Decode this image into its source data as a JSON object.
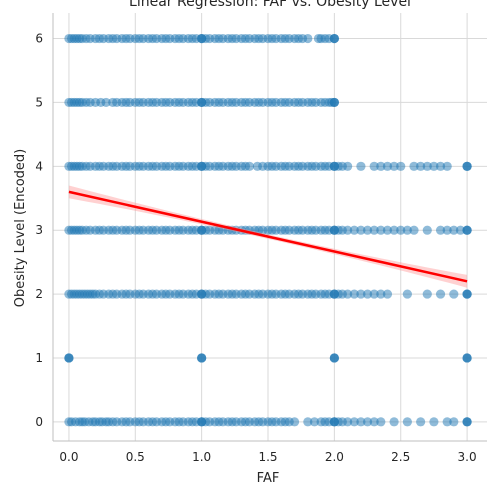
{
  "chart_data": {
    "type": "scatter",
    "title": "Linear Regression: FAF vs. Obesity Level",
    "xlabel": "FAF",
    "ylabel": "Obesity Level (Encoded)",
    "xlim": [
      -0.12,
      3.15
    ],
    "ylim": [
      -0.3,
      6.4
    ],
    "x_ticks": [
      "0.0",
      "0.5",
      "1.0",
      "1.5",
      "2.0",
      "2.5",
      "3.0"
    ],
    "y_ticks": [
      "0",
      "1",
      "2",
      "3",
      "4",
      "5",
      "6"
    ],
    "grid": true,
    "point_color": "#1f77b4",
    "point_alpha": 0.5,
    "series": [
      {
        "values_by_level": [
          {
            "y": 0,
            "x": [
              0.0,
              0.02,
              0.05,
              0.08,
              0.1,
              0.12,
              0.15,
              0.18,
              0.2,
              0.23,
              0.25,
              0.28,
              0.3,
              0.33,
              0.36,
              0.4,
              0.43,
              0.46,
              0.5,
              0.53,
              0.56,
              0.6,
              0.63,
              0.66,
              0.7,
              0.73,
              0.76,
              0.8,
              0.83,
              0.86,
              0.9,
              0.93,
              0.96,
              1.0,
              1.0,
              1.0,
              1.03,
              1.06,
              1.1,
              1.13,
              1.16,
              1.2,
              1.23,
              1.26,
              1.3,
              1.33,
              1.36,
              1.4,
              1.43,
              1.46,
              1.5,
              1.53,
              1.56,
              1.6,
              1.63,
              1.66,
              1.7,
              1.8,
              1.85,
              1.9,
              1.93,
              1.96,
              2.0,
              2.0,
              2.0,
              2.03,
              2.06,
              2.1,
              2.15,
              2.2,
              2.25,
              2.3,
              2.35,
              2.45,
              2.55,
              2.65,
              2.75,
              2.85,
              2.9,
              3.0,
              3.0,
              3.0
            ]
          },
          {
            "y": 1,
            "x": [
              0.0,
              0.0,
              0.0,
              1.0,
              1.0,
              1.0,
              2.0,
              2.0,
              2.0,
              3.0,
              3.0,
              3.0
            ]
          },
          {
            "y": 2,
            "x": [
              0.0,
              0.02,
              0.04,
              0.06,
              0.08,
              0.1,
              0.12,
              0.14,
              0.16,
              0.18,
              0.2,
              0.23,
              0.26,
              0.3,
              0.33,
              0.36,
              0.4,
              0.43,
              0.46,
              0.5,
              0.53,
              0.56,
              0.6,
              0.63,
              0.66,
              0.7,
              0.73,
              0.76,
              0.8,
              0.83,
              0.86,
              0.9,
              0.93,
              0.96,
              1.0,
              1.0,
              1.0,
              1.03,
              1.06,
              1.1,
              1.13,
              1.16,
              1.2,
              1.23,
              1.26,
              1.3,
              1.33,
              1.36,
              1.4,
              1.43,
              1.46,
              1.5,
              1.53,
              1.56,
              1.6,
              1.63,
              1.66,
              1.7,
              1.73,
              1.76,
              1.8,
              1.83,
              1.86,
              1.9,
              1.93,
              1.96,
              2.0,
              2.0,
              2.0,
              2.03,
              2.06,
              2.1,
              2.15,
              2.2,
              2.25,
              2.3,
              2.35,
              2.4,
              2.55,
              2.7,
              2.8,
              2.9,
              3.0,
              3.0,
              3.0
            ]
          },
          {
            "y": 3,
            "x": [
              0.0,
              0.02,
              0.04,
              0.06,
              0.08,
              0.1,
              0.13,
              0.16,
              0.2,
              0.23,
              0.26,
              0.3,
              0.33,
              0.36,
              0.4,
              0.43,
              0.46,
              0.5,
              0.53,
              0.56,
              0.6,
              0.63,
              0.66,
              0.7,
              0.73,
              0.76,
              0.8,
              0.83,
              0.86,
              0.9,
              0.93,
              0.96,
              1.0,
              1.0,
              1.0,
              1.03,
              1.06,
              1.1,
              1.13,
              1.16,
              1.2,
              1.23,
              1.26,
              1.3,
              1.33,
              1.36,
              1.4,
              1.43,
              1.46,
              1.5,
              1.53,
              1.56,
              1.6,
              1.63,
              1.66,
              1.7,
              1.73,
              1.76,
              1.8,
              1.83,
              1.86,
              1.9,
              1.93,
              1.96,
              2.0,
              2.0,
              2.0,
              2.03,
              2.06,
              2.1,
              2.15,
              2.2,
              2.25,
              2.3,
              2.35,
              2.4,
              2.45,
              2.5,
              2.55,
              2.6,
              2.7,
              2.8,
              2.85,
              2.9,
              2.95,
              3.0,
              3.0,
              3.0
            ]
          },
          {
            "y": 4,
            "x": [
              0.0,
              0.02,
              0.04,
              0.06,
              0.08,
              0.1,
              0.13,
              0.16,
              0.2,
              0.23,
              0.26,
              0.3,
              0.33,
              0.36,
              0.4,
              0.43,
              0.46,
              0.5,
              0.53,
              0.56,
              0.6,
              0.63,
              0.66,
              0.7,
              0.73,
              0.76,
              0.8,
              0.83,
              0.86,
              0.9,
              0.93,
              0.96,
              1.0,
              1.0,
              1.0,
              1.03,
              1.06,
              1.1,
              1.13,
              1.16,
              1.2,
              1.23,
              1.26,
              1.3,
              1.33,
              1.36,
              1.42,
              1.46,
              1.5,
              1.53,
              1.56,
              1.6,
              1.63,
              1.66,
              1.7,
              1.73,
              1.76,
              1.8,
              1.83,
              1.86,
              1.9,
              1.93,
              1.96,
              2.0,
              2.0,
              2.0,
              2.03,
              2.06,
              2.1,
              2.2,
              2.3,
              2.35,
              2.4,
              2.45,
              2.5,
              2.6,
              2.65,
              2.7,
              2.75,
              2.8,
              2.85,
              3.0,
              3.0,
              3.0
            ]
          },
          {
            "y": 5,
            "x": [
              0.0,
              0.02,
              0.04,
              0.06,
              0.08,
              0.1,
              0.13,
              0.16,
              0.2,
              0.24,
              0.28,
              0.33,
              0.36,
              0.4,
              0.43,
              0.46,
              0.5,
              0.53,
              0.56,
              0.6,
              0.63,
              0.66,
              0.7,
              0.73,
              0.76,
              0.8,
              0.83,
              0.86,
              0.9,
              0.93,
              0.96,
              1.0,
              1.0,
              1.0,
              1.03,
              1.06,
              1.1,
              1.13,
              1.16,
              1.2,
              1.23,
              1.26,
              1.3,
              1.33,
              1.36,
              1.4,
              1.43,
              1.46,
              1.5,
              1.53,
              1.56,
              1.6,
              1.63,
              1.66,
              1.7,
              1.73,
              1.76,
              1.8,
              1.83,
              1.86,
              1.9,
              1.93,
              1.96,
              1.98,
              2.0,
              2.0,
              2.0
            ]
          },
          {
            "y": 6,
            "x": [
              0.0,
              0.02,
              0.04,
              0.06,
              0.08,
              0.1,
              0.13,
              0.16,
              0.2,
              0.23,
              0.26,
              0.3,
              0.33,
              0.36,
              0.4,
              0.43,
              0.46,
              0.5,
              0.53,
              0.56,
              0.6,
              0.63,
              0.66,
              0.7,
              0.73,
              0.76,
              0.8,
              0.83,
              0.86,
              0.9,
              0.93,
              0.96,
              1.0,
              1.0,
              1.0,
              1.03,
              1.06,
              1.1,
              1.13,
              1.16,
              1.2,
              1.23,
              1.26,
              1.3,
              1.33,
              1.36,
              1.4,
              1.43,
              1.46,
              1.5,
              1.53,
              1.56,
              1.6,
              1.63,
              1.66,
              1.7,
              1.73,
              1.76,
              1.8,
              1.88,
              1.9,
              1.93,
              1.96,
              2.0,
              2.0,
              2.0
            ]
          }
        ]
      }
    ],
    "regression": {
      "color": "#ff0000",
      "band_color": "#ff9999",
      "x": [
        0.0,
        3.0
      ],
      "y": [
        3.6,
        2.2
      ],
      "ci_halfwidth_ends": 0.1,
      "ci_halfwidth_mid": 0.035
    }
  }
}
